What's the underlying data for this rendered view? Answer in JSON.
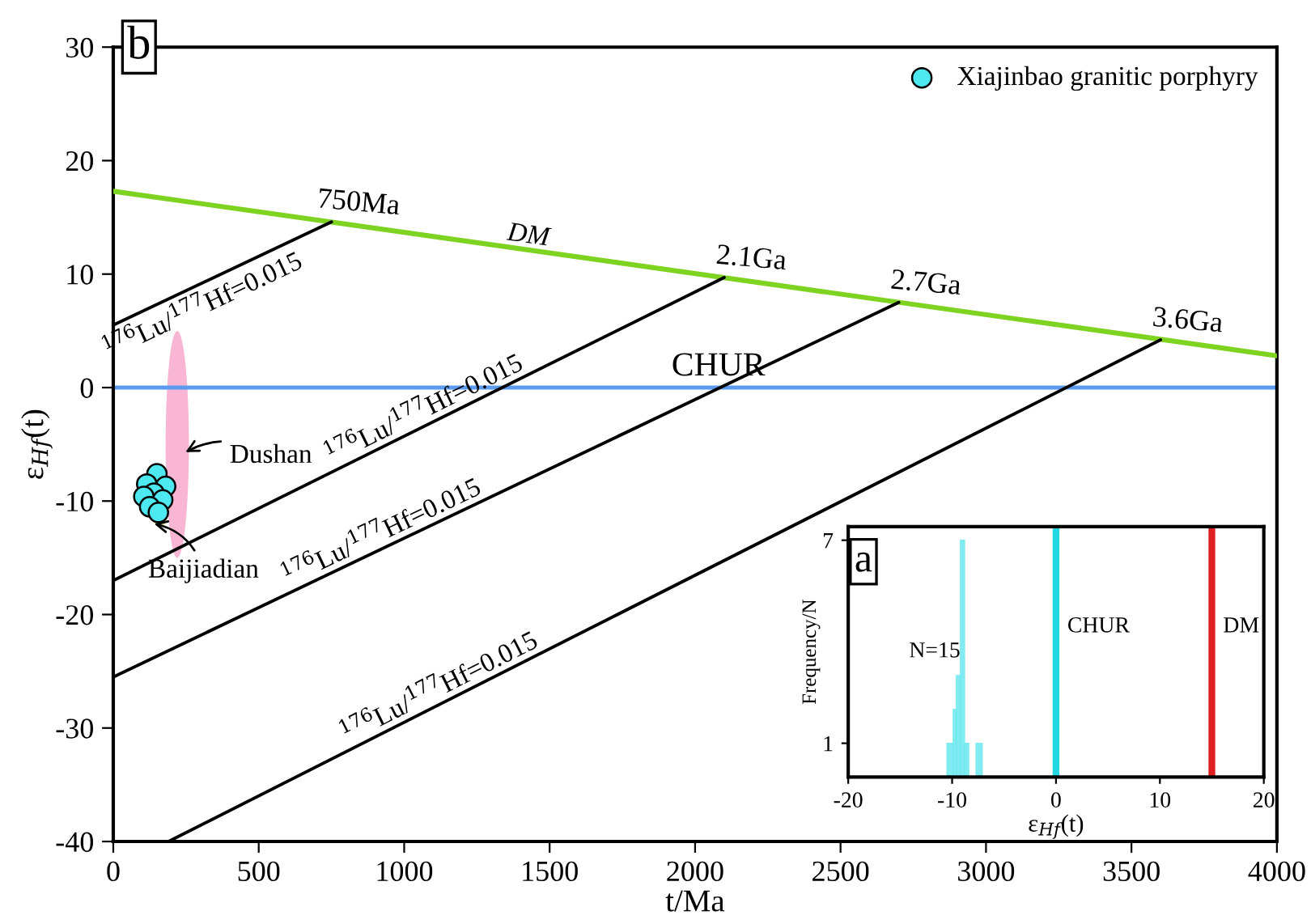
{
  "chart_data": [
    {
      "type": "line",
      "title": "b",
      "xlabel": "t/Ma",
      "ylabel": "ε$_{Hf}$(t)",
      "xlim": [
        0,
        4000
      ],
      "ylim": [
        -40,
        30
      ],
      "xticks": [
        0,
        500,
        1000,
        1500,
        2000,
        2500,
        3000,
        3500,
        4000
      ],
      "yticks": [
        -40,
        -30,
        -20,
        -10,
        0,
        10,
        20,
        30
      ],
      "grid": false,
      "legend": "top right",
      "series": [
        {
          "type": "line",
          "name": "DM",
          "color": "#7ed321",
          "x": [
            0,
            4000
          ],
          "values": [
            17.3,
            2.8
          ]
        },
        {
          "type": "line",
          "name": "$^{176}$Lu/$^{177}$Hf=0.015",
          "color": "#000000",
          "x": [
            0,
            750
          ],
          "values": [
            5.5,
            14.6
          ]
        },
        {
          "type": "line",
          "name": "$^{176}$Lu/$^{177}$Hf=0.015",
          "color": "#000000",
          "x": [
            0,
            2100
          ],
          "values": [
            -17,
            9.7
          ]
        },
        {
          "type": "line",
          "name": "$^{176}$Lu/$^{177}$Hf=0.015",
          "color": "#000000",
          "x": [
            0,
            2700
          ],
          "values": [
            -25.5,
            7.5
          ]
        },
        {
          "type": "line",
          "name": "$^{176}$Lu/$^{177}$Hf=0.015",
          "color": "#000000",
          "x": [
            190,
            3600
          ],
          "values": [
            -40,
            4.2
          ]
        },
        {
          "type": "scatter",
          "name": "Xiajinbao granitic porphyry",
          "color": "#4de8f0",
          "marker": "circle",
          "x": [
            150,
            115,
            180,
            140,
            105,
            170,
            125,
            155
          ],
          "values": [
            -7.6,
            -8.5,
            -8.7,
            -9.3,
            -9.6,
            -9.9,
            -10.5,
            -11.0
          ]
        }
      ],
      "ref_lines": [
        {
          "axis": "y",
          "value": 0,
          "label": "CHUR",
          "color": "#5b9bef"
        }
      ],
      "annotations": [
        {
          "text": "750Ma",
          "x": 750,
          "y": 14.6
        },
        {
          "text": "2.1Ga",
          "x": 2100,
          "y": 9.7
        },
        {
          "text": "2.7Ga",
          "x": 2700,
          "y": 7.5
        },
        {
          "text": "3.6Ga",
          "x": 3600,
          "y": 4.2
        },
        "Dushan",
        {
          "text": "Baijiadian",
          "x": 140,
          "y": -12
        }
      ]
    },
    {
      "type": "histogram",
      "title": "a",
      "xlabel": "ε$_{Hf}$(t)",
      "ylabel": "Frequency/N",
      "xlim": [
        -20,
        20
      ],
      "ylim": [
        0,
        7.4
      ],
      "xticks": [
        -20,
        -10,
        0,
        10,
        20
      ],
      "yticks": [
        1,
        7
      ],
      "bins": [
        -10.5,
        -9.9,
        -9.6,
        -9.2,
        -8.8,
        -8.4,
        -7.7,
        -7.1
      ],
      "values": [
        1,
        2,
        3,
        7,
        1,
        0,
        1
      ],
      "color": "#6ae8ee",
      "ref_lines": [
        {
          "axis": "x",
          "value": 0,
          "label": "CHUR",
          "color": "#22d8e0"
        },
        {
          "axis": "x",
          "value": 15,
          "label": "DM",
          "color": "#e02020"
        }
      ],
      "annotations": [
        "N=15"
      ]
    }
  ]
}
